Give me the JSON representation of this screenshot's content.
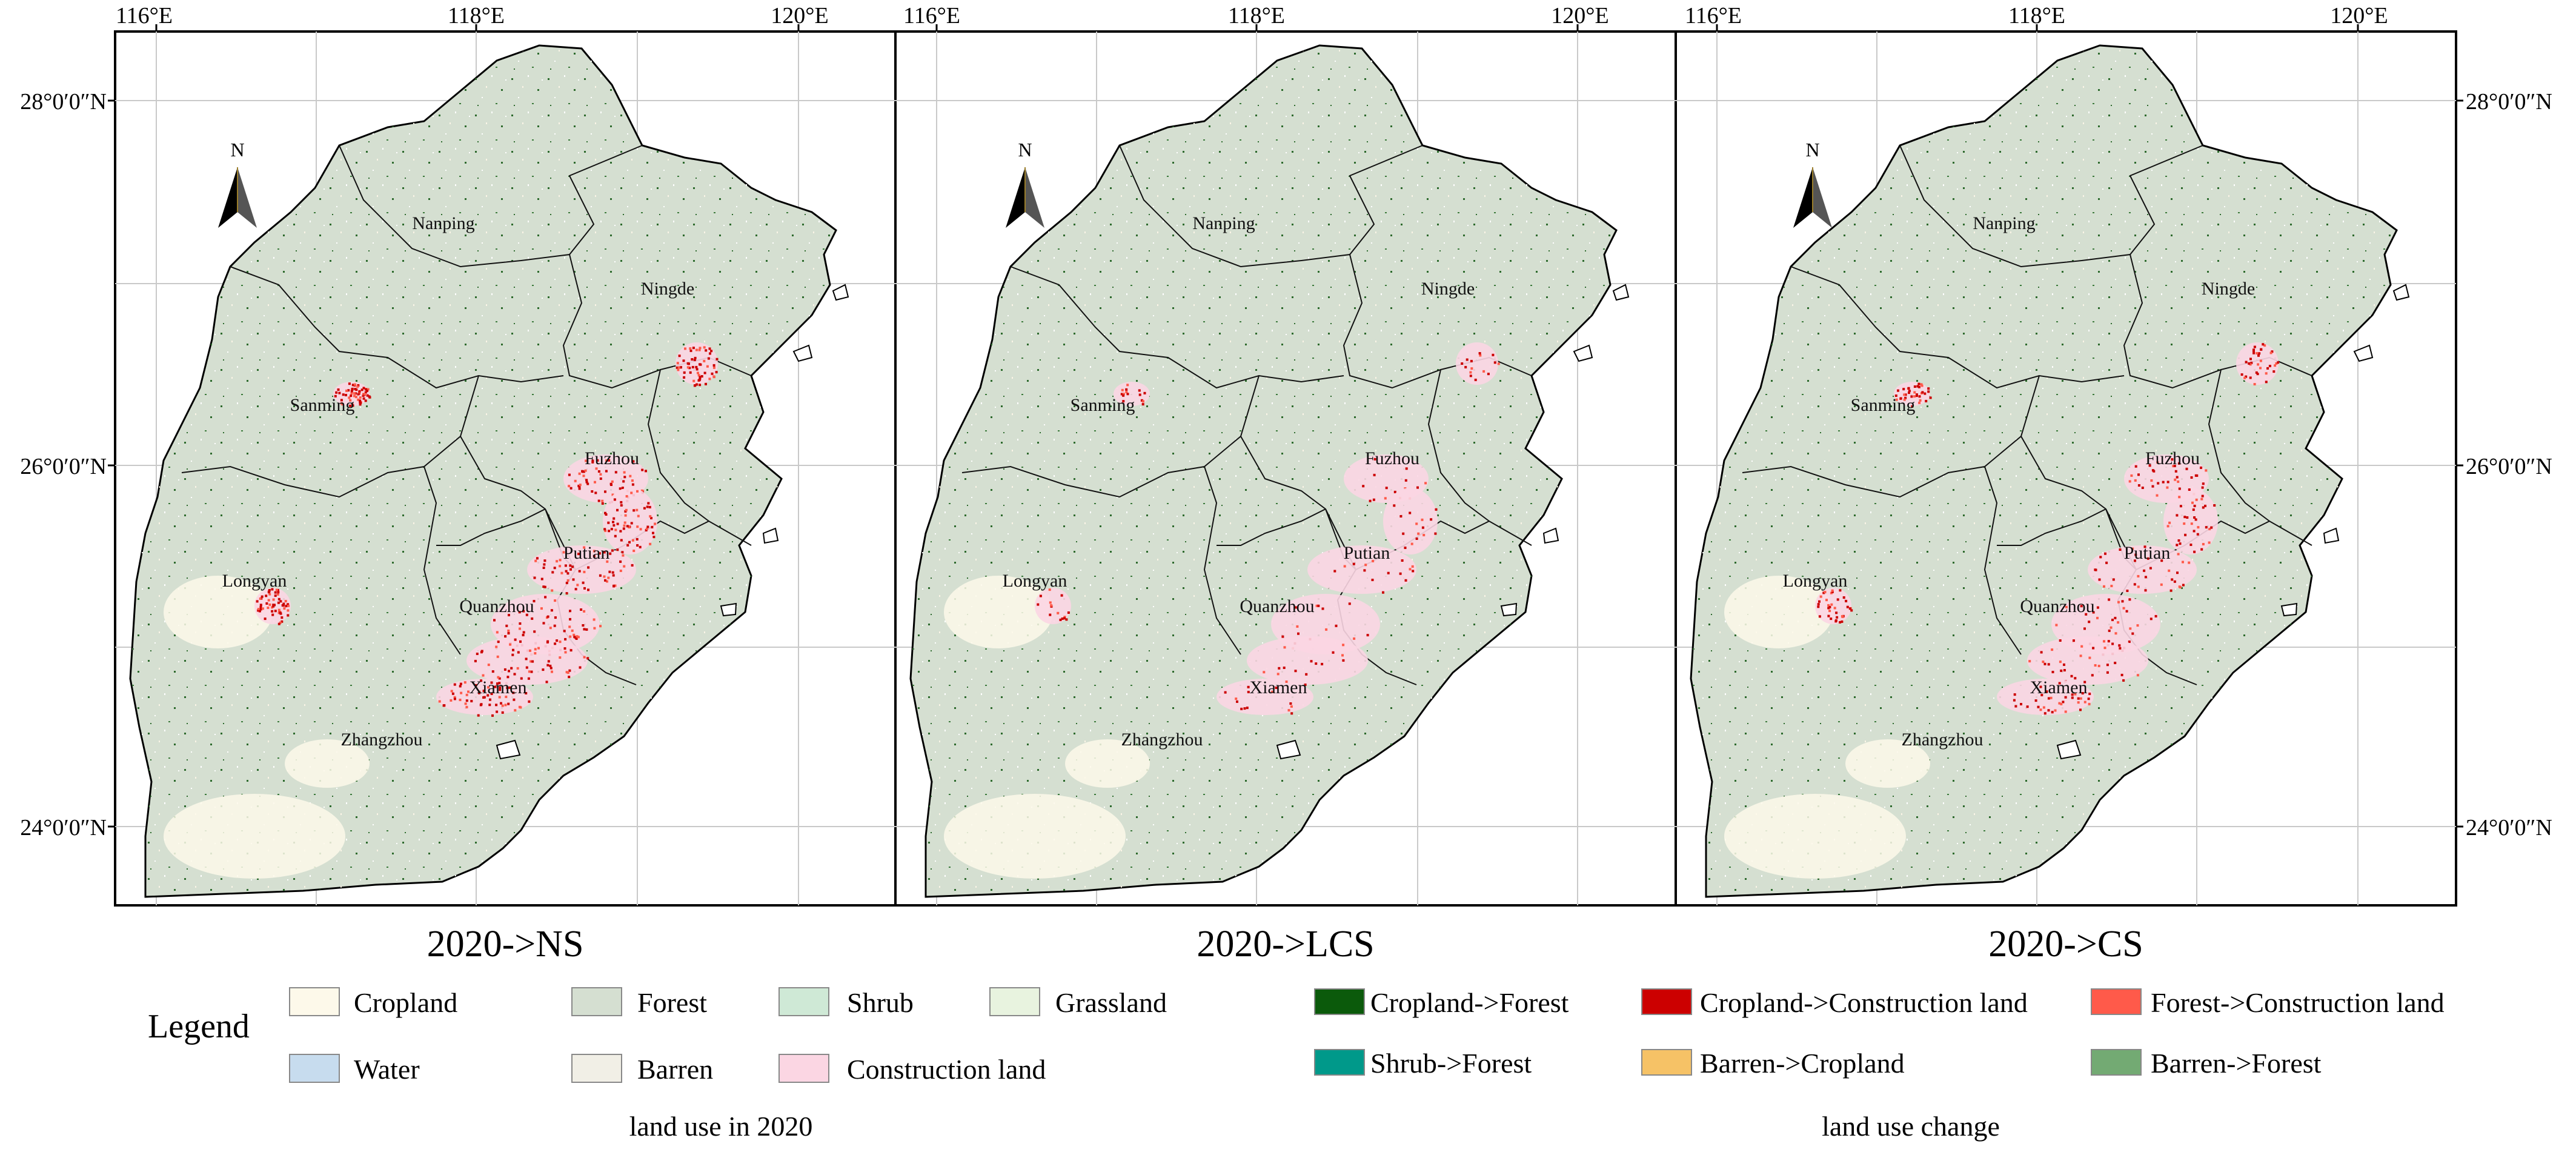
{
  "top_axis_ticks": [
    "116°E",
    "118°E",
    "120°E"
  ],
  "left_axis_ticks": [
    "28°0′0″N",
    "26°0′0″N",
    "24°0′0″N"
  ],
  "right_axis_ticks": [
    "28°0′0″N",
    "26°0′0″N",
    "24°0′0″N"
  ],
  "north_arrow_label": "N",
  "panels": [
    {
      "caption": "2020->NS",
      "construction_intensity": "high"
    },
    {
      "caption": "2020->LCS",
      "construction_intensity": "low"
    },
    {
      "caption": "2020->CS",
      "construction_intensity": "medium"
    }
  ],
  "cities": [
    "Nanping",
    "Ningde",
    "Sanming",
    "Fuzhou",
    "Longyan",
    "Putian",
    "Quanzhou",
    "Xiamen",
    "Zhangzhou"
  ],
  "legend": {
    "title": "Legend",
    "land_use_2020": {
      "caption": "land use in 2020",
      "items": [
        {
          "label": "Cropland",
          "color": "#fdf9ea"
        },
        {
          "label": "Forest",
          "color": "#d5dfd1"
        },
        {
          "label": "Shrub",
          "color": "#cfe9d6"
        },
        {
          "label": "Grassland",
          "color": "#e8f3df"
        },
        {
          "label": "Water",
          "color": "#c7dcee"
        },
        {
          "label": "Barren",
          "color": "#f1efe6"
        },
        {
          "label": "Construction land",
          "color": "#fbd6e3"
        }
      ]
    },
    "land_use_change": {
      "caption": "land use change",
      "items": [
        {
          "label": "Cropland->Forest",
          "color": "#0b5a0b"
        },
        {
          "label": "Cropland->Construction land",
          "color": "#cc0000"
        },
        {
          "label": "Forest->Construction land",
          "color": "#ff5a4a"
        },
        {
          "label": "Shrub->Forest",
          "color": "#00998a"
        },
        {
          "label": "Barren->Cropland",
          "color": "#f6c266"
        },
        {
          "label": "Barren->Forest",
          "color": "#73aa73"
        }
      ]
    }
  }
}
